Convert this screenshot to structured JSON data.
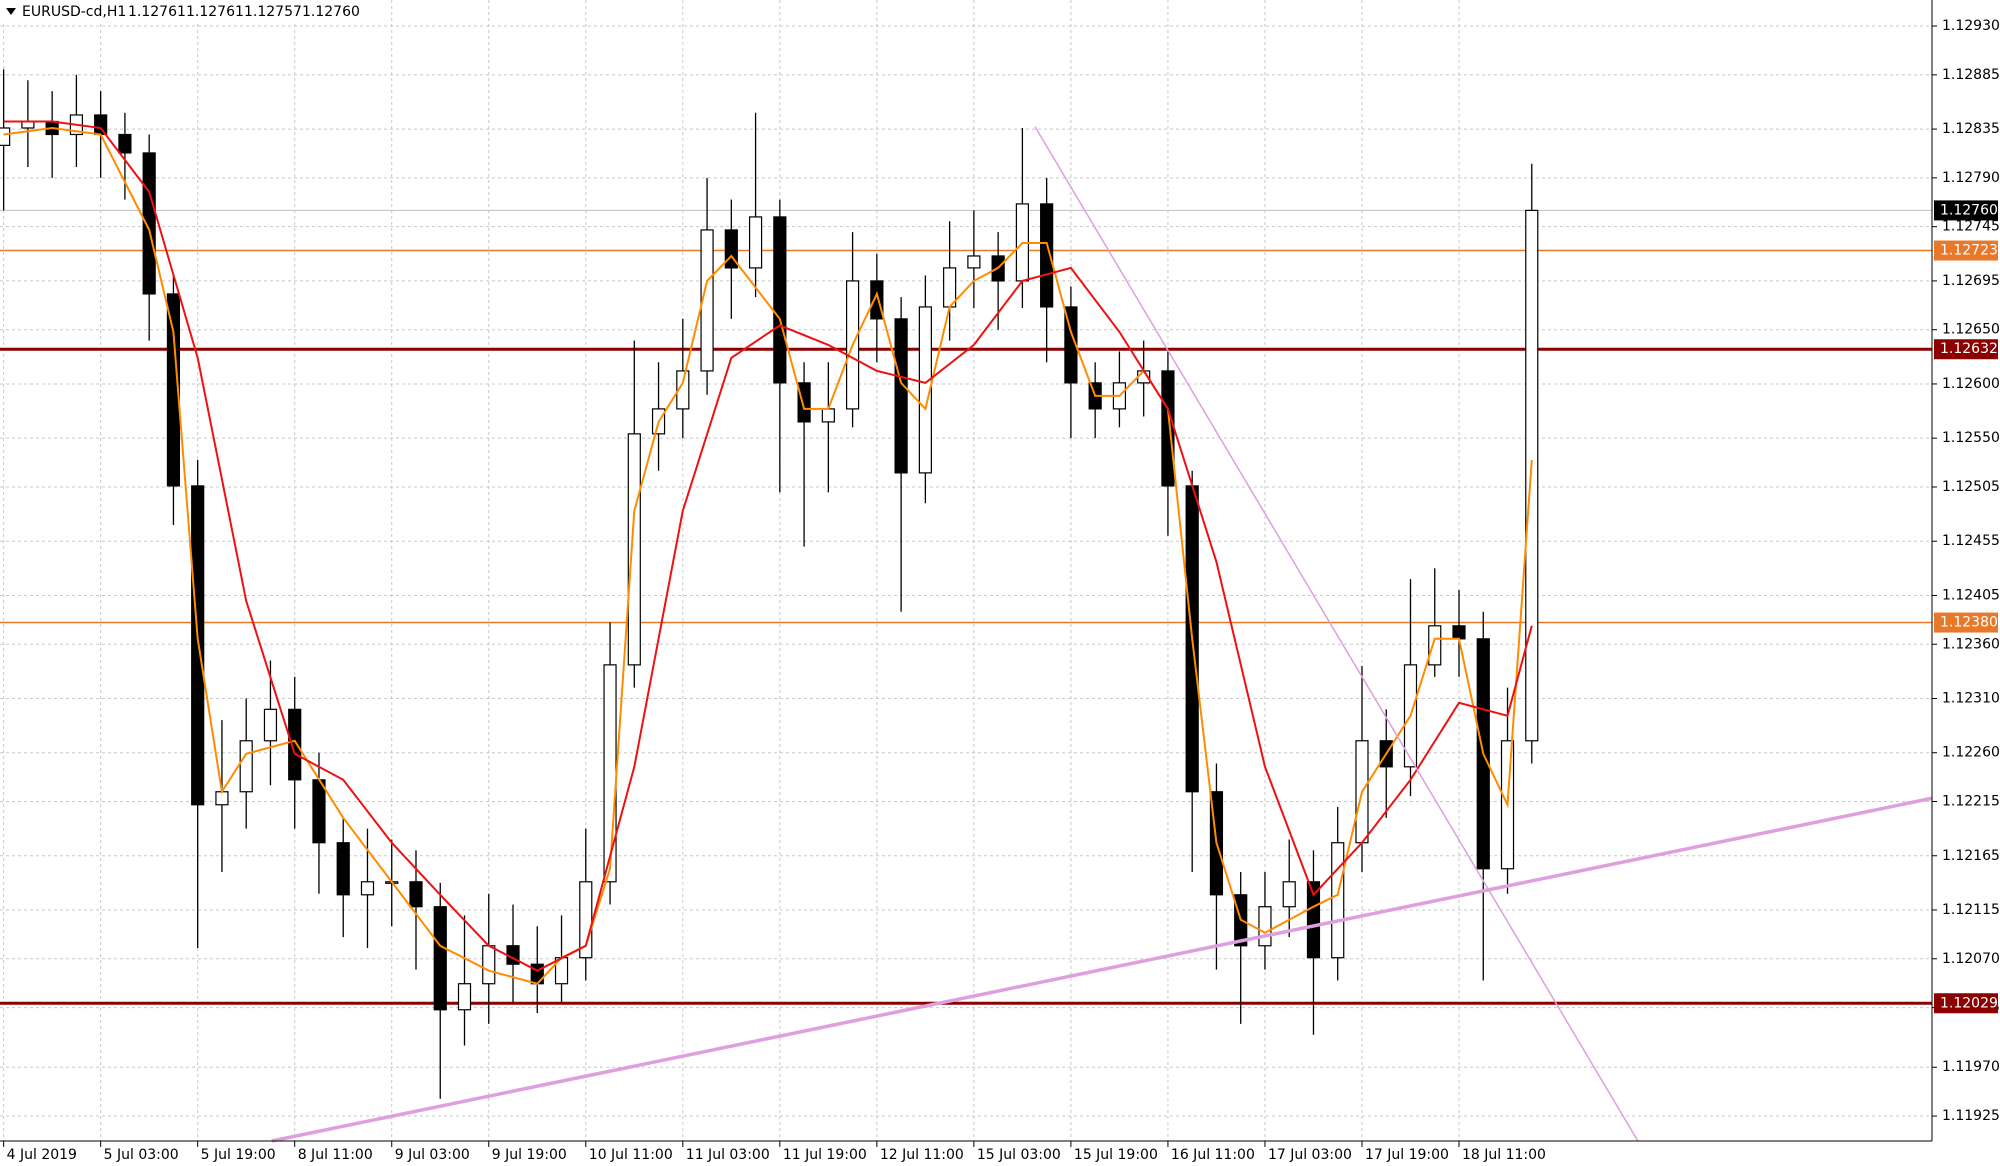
{
  "chart_data": {
    "type": "candlestick",
    "title": "EURUSD-cd,H1",
    "header_values": [
      1.12761,
      1.12761,
      1.12757,
      1.1276
    ],
    "header_value_labels": [
      "1.12761",
      "1.12761",
      "1.12757",
      "1.12760"
    ],
    "xlim": [
      -0.6,
      318
    ],
    "ylim": [
      1.11902,
      1.12954
    ],
    "grid": true,
    "xticks": [
      {
        "value": 0,
        "label": "4 Jul 2019"
      },
      {
        "value": 16,
        "label": "5 Jul 03:00"
      },
      {
        "value": 32,
        "label": "5 Jul 19:00"
      },
      {
        "value": 48,
        "label": "8 Jul 11:00"
      },
      {
        "value": 64,
        "label": "9 Jul 03:00"
      },
      {
        "value": 80,
        "label": "9 Jul 19:00"
      },
      {
        "value": 96,
        "label": "10 Jul 11:00"
      },
      {
        "value": 112,
        "label": "11 Jul 03:00"
      },
      {
        "value": 128,
        "label": "11 Jul 19:00"
      },
      {
        "value": 144,
        "label": "12 Jul 11:00"
      },
      {
        "value": 160,
        "label": "15 Jul 03:00"
      },
      {
        "value": 176,
        "label": "15 Jul 19:00"
      },
      {
        "value": 192,
        "label": "16 Jul 11:00"
      },
      {
        "value": 208,
        "label": "17 Jul 03:00"
      },
      {
        "value": 224,
        "label": "17 Jul 19:00"
      },
      {
        "value": 240,
        "label": "18 Jul 11:00"
      }
    ],
    "yticks": [
      {
        "value": 1.1293,
        "label": "1.12930"
      },
      1.12885,
      1.12835,
      {
        "value": 1.1279,
        "label": "1.12790"
      },
      1.12745,
      1.12695,
      {
        "value": 1.1265,
        "label": "1.12650"
      },
      {
        "value": 1.126,
        "label": "1.12600"
      },
      {
        "value": 1.1255,
        "label": "1.12550"
      },
      1.12505,
      1.12455,
      1.12405,
      {
        "value": 1.1236,
        "label": "1.12360"
      },
      {
        "value": 1.1231,
        "label": "1.12310"
      },
      {
        "value": 1.1226,
        "label": "1.12260"
      },
      1.12215,
      1.12165,
      1.12115,
      {
        "value": 1.1207,
        "label": "1.12070"
      },
      1.12025,
      {
        "value": 1.1197,
        "label": "1.11970"
      },
      1.11925
    ],
    "candles": {
      "up_color": "#ffffff",
      "down_color": "#000000",
      "edge_color": "#000000",
      "x": [
        0,
        4,
        8,
        12,
        16,
        20,
        24,
        28,
        32,
        36,
        40,
        44,
        48,
        52,
        56,
        60,
        64,
        68,
        72,
        76,
        80,
        84,
        88,
        92,
        96,
        100,
        104,
        108,
        112,
        116,
        120,
        124,
        128,
        132,
        136,
        140,
        144,
        148,
        152,
        156,
        160,
        164,
        168,
        172,
        176,
        180,
        184,
        188,
        192,
        196,
        200,
        204,
        208,
        212,
        216,
        220,
        224,
        228,
        232,
        236,
        240,
        244,
        248,
        252
      ],
      "open": [
        1.1282,
        1.12836,
        1.12842,
        1.1283,
        1.12848,
        1.1283,
        1.12813,
        1.12683,
        1.12506,
        1.12212,
        1.12224,
        1.12271,
        1.123,
        1.12235,
        1.12177,
        1.12129,
        1.12141,
        1.12141,
        1.12118,
        1.12023,
        1.12047,
        1.12082,
        1.12065,
        1.12047,
        1.12071,
        1.12141,
        1.12341,
        1.12554,
        1.12577,
        1.12612,
        1.12742,
        1.12707,
        1.12754,
        1.12601,
        1.12565,
        1.12577,
        1.12695,
        1.1266,
        1.12518,
        1.12671,
        1.12707,
        1.12718,
        1.12695,
        1.12766,
        1.12671,
        1.12601,
        1.12577,
        1.12601,
        1.12612,
        1.12506,
        1.12224,
        1.12129,
        1.12082,
        1.12118,
        1.12141,
        1.12071,
        1.12177,
        1.12271,
        1.12247,
        1.12341,
        1.12377,
        1.12365,
        1.12153,
        1.12271
      ],
      "high": [
        1.1289,
        1.1288,
        1.1287,
        1.12885,
        1.1287,
        1.1285,
        1.1283,
        1.127,
        1.1253,
        1.1229,
        1.1231,
        1.12345,
        1.1233,
        1.1226,
        1.122,
        1.1219,
        1.1218,
        1.1217,
        1.1214,
        1.1211,
        1.1213,
        1.1212,
        1.121,
        1.1211,
        1.1219,
        1.1238,
        1.1264,
        1.1262,
        1.1266,
        1.1279,
        1.1277,
        1.1285,
        1.1277,
        1.1262,
        1.1262,
        1.1274,
        1.1272,
        1.1268,
        1.127,
        1.1275,
        1.1276,
        1.1274,
        1.12836,
        1.1279,
        1.1269,
        1.1262,
        1.1263,
        1.1264,
        1.1263,
        1.1252,
        1.1225,
        1.1215,
        1.1215,
        1.1218,
        1.1217,
        1.1221,
        1.1234,
        1.123,
        1.1242,
        1.1243,
        1.1241,
        1.1239,
        1.1232,
        1.12803
      ],
      "low": [
        1.1276,
        1.128,
        1.1279,
        1.128,
        1.1279,
        1.1277,
        1.1264,
        1.1247,
        1.1208,
        1.1215,
        1.1219,
        1.1223,
        1.1219,
        1.1213,
        1.1209,
        1.1208,
        1.121,
        1.1206,
        1.11941,
        1.1199,
        1.1201,
        1.1203,
        1.1202,
        1.1203,
        1.1205,
        1.1212,
        1.1232,
        1.1252,
        1.1255,
        1.1259,
        1.1266,
        1.1268,
        1.125,
        1.1245,
        1.125,
        1.1256,
        1.1262,
        1.1239,
        1.1249,
        1.1264,
        1.1267,
        1.1265,
        1.1267,
        1.1262,
        1.1255,
        1.1255,
        1.1256,
        1.1257,
        1.1246,
        1.1215,
        1.1206,
        1.1201,
        1.1206,
        1.1209,
        1.12,
        1.1205,
        1.1215,
        1.122,
        1.1222,
        1.1233,
        1.1233,
        1.1205,
        1.1213,
        1.1225
      ],
      "close": [
        1.12836,
        1.12842,
        1.1283,
        1.12848,
        1.1283,
        1.12813,
        1.12683,
        1.12506,
        1.12212,
        1.12224,
        1.12271,
        1.123,
        1.12235,
        1.12177,
        1.12129,
        1.12141,
        1.12141,
        1.12118,
        1.12023,
        1.12047,
        1.12082,
        1.12065,
        1.12047,
        1.12071,
        1.12141,
        1.12341,
        1.12554,
        1.12577,
        1.12612,
        1.12742,
        1.12707,
        1.12754,
        1.12601,
        1.12565,
        1.12577,
        1.12695,
        1.1266,
        1.12518,
        1.12671,
        1.12707,
        1.12718,
        1.12695,
        1.12766,
        1.12671,
        1.12601,
        1.12577,
        1.12601,
        1.12612,
        1.12506,
        1.12224,
        1.12129,
        1.12082,
        1.12118,
        1.12141,
        1.12071,
        1.12177,
        1.12271,
        1.12247,
        1.12341,
        1.12377,
        1.12365,
        1.12153,
        1.12271,
        1.1276
      ]
    },
    "series": [
      {
        "color": "#ff8c00",
        "x": [
          0,
          8,
          16,
          24,
          28,
          32,
          36,
          40,
          48,
          56,
          64,
          72,
          80,
          88,
          92,
          96,
          100,
          104,
          108,
          112,
          116,
          120,
          128,
          132,
          136,
          140,
          144,
          148,
          152,
          156,
          160,
          164,
          168,
          172,
          176,
          180,
          184,
          188,
          192,
          196,
          200,
          204,
          208,
          212,
          216,
          220,
          224,
          228,
          232,
          236,
          240,
          244,
          248,
          252
        ],
        "values": [
          1.1283,
          1.12836,
          1.1283,
          1.12742,
          1.12648,
          1.12365,
          1.12224,
          1.12259,
          1.12271,
          1.122,
          1.12141,
          1.12082,
          1.12059,
          1.12047,
          1.12071,
          1.12082,
          1.12153,
          1.12483,
          1.12565,
          1.12601,
          1.12695,
          1.12718,
          1.1266,
          1.12577,
          1.12577,
          1.12636,
          1.12683,
          1.12601,
          1.12577,
          1.12671,
          1.12695,
          1.12707,
          1.1273,
          1.1273,
          1.12648,
          1.12589,
          1.12589,
          1.12612,
          1.12577,
          1.12365,
          1.12177,
          1.12106,
          1.12094,
          1.12106,
          1.12118,
          1.12129,
          1.12224,
          1.12259,
          1.12294,
          1.12365,
          1.12365,
          1.12259,
          1.12212,
          1.1253
        ]
      },
      {
        "color": "#ee1111",
        "x": [
          0,
          8,
          16,
          24,
          32,
          40,
          48,
          56,
          64,
          72,
          80,
          88,
          96,
          104,
          112,
          120,
          128,
          136,
          144,
          152,
          160,
          168,
          176,
          184,
          192,
          200,
          208,
          216,
          224,
          232,
          240,
          248,
          252
        ],
        "values": [
          1.12842,
          1.12842,
          1.12836,
          1.12777,
          1.12624,
          1.124,
          1.12259,
          1.12235,
          1.12177,
          1.12129,
          1.12082,
          1.12059,
          1.12082,
          1.12247,
          1.12483,
          1.12624,
          1.12654,
          1.12636,
          1.12612,
          1.12601,
          1.12636,
          1.12695,
          1.12707,
          1.12648,
          1.12577,
          1.12436,
          1.12247,
          1.12129,
          1.12177,
          1.12235,
          1.12306,
          1.12294,
          1.12377
        ]
      }
    ],
    "levels": [
      {
        "value": 1.12723,
        "label": "1.12723",
        "color": "#e8782a",
        "width": 1.5
      },
      {
        "value": 1.12632,
        "label": "1.12632",
        "color": "#8b0000",
        "width": 3
      },
      {
        "value": 1.1238,
        "label": "1.12380",
        "color": "#e8782a",
        "width": 1.5
      },
      {
        "value": 1.12029,
        "label": "1.12029",
        "color": "#8b0000",
        "width": 3
      }
    ],
    "last_price": {
      "value": 1.1276,
      "label": "1.12760",
      "color": "#000000"
    },
    "trendlines": [
      {
        "x": [
          170.1,
          269.5
        ],
        "values": [
          1.12837,
          1.11902
        ],
        "color": "#dda0dd",
        "width": 1.5
      },
      {
        "x": [
          44.2,
          318
        ],
        "values": [
          1.11902,
          1.12218
        ],
        "color": "#dda0dd",
        "width": 3.5
      }
    ]
  }
}
